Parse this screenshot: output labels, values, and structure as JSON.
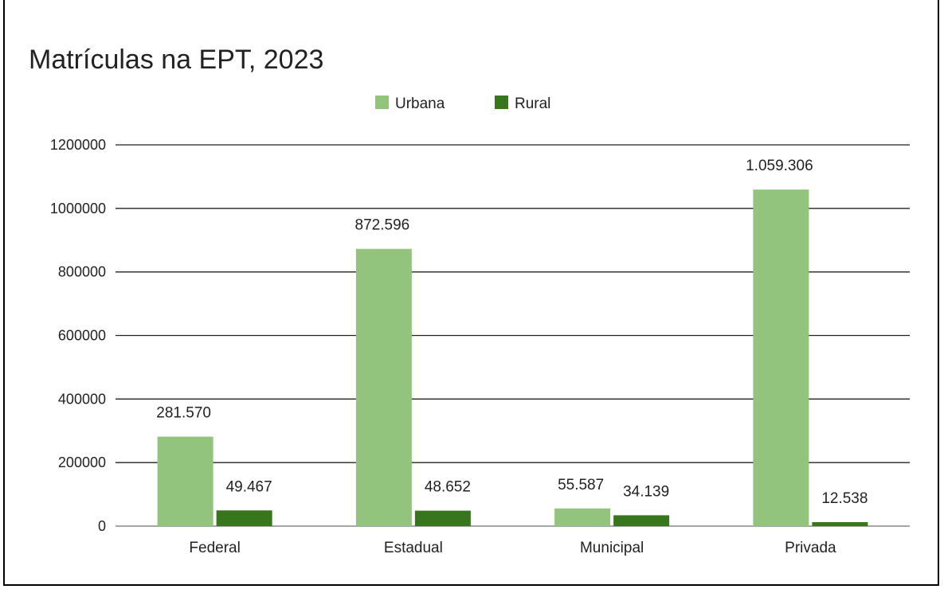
{
  "chart_data": {
    "type": "bar",
    "title": "Matrículas na EPT, 2023",
    "xlabel": "",
    "ylabel": "",
    "categories": [
      "Federal",
      "Estadual",
      "Municipal",
      "Privada"
    ],
    "series": [
      {
        "name": "Urbana",
        "color": "#93c47d",
        "values": [
          281570,
          872596,
          55587,
          1059306
        ],
        "labels": [
          "281.570",
          "872.596",
          "55.587",
          "1.059.306"
        ]
      },
      {
        "name": "Rural",
        "color": "#38761d",
        "values": [
          49467,
          48652,
          34139,
          12538
        ],
        "labels": [
          "49.467",
          "48.652",
          "34.139",
          "12.538"
        ]
      }
    ],
    "ylim": [
      0,
      1200000
    ],
    "yticks": [
      "0",
      "200000",
      "400000",
      "600000",
      "800000",
      "1000000",
      "1200000"
    ],
    "grid": true,
    "legend": "top"
  }
}
